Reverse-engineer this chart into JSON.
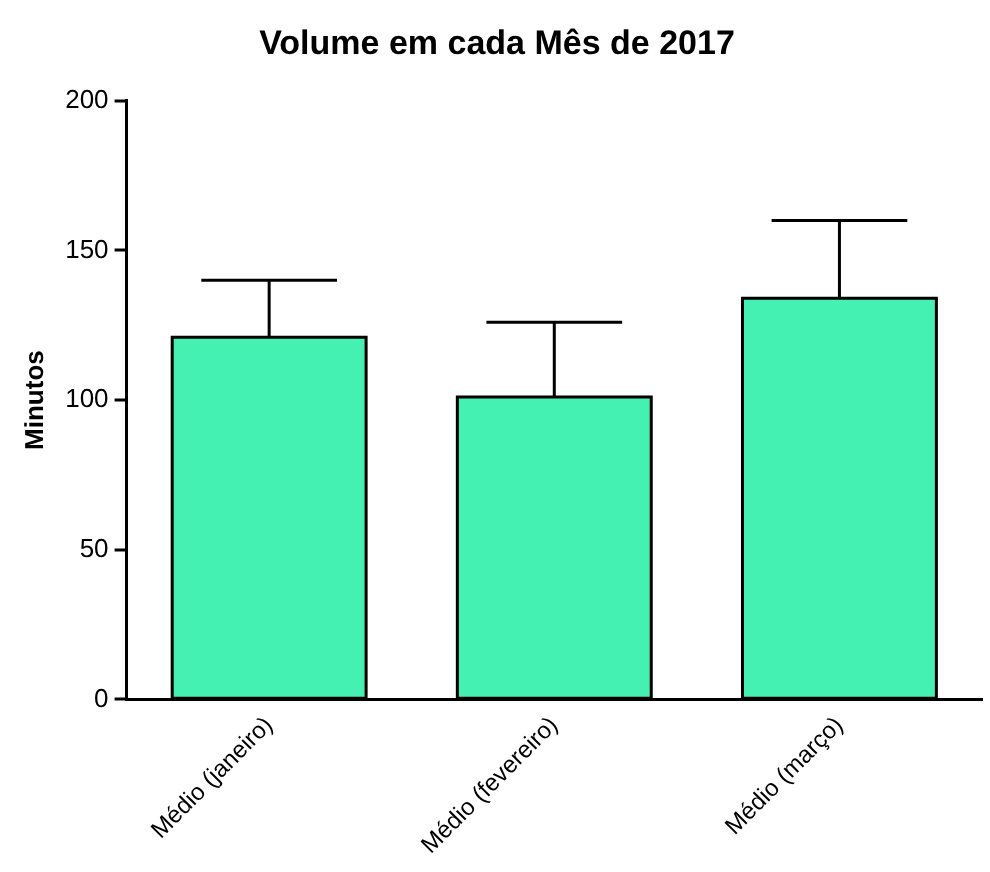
{
  "chart_data": {
    "type": "bar",
    "title": "Volume em cada Mês de 2017",
    "ylabel": "Minutos",
    "categories": [
      "Médio (janeiro)",
      "Médio (fevereiro)",
      "Médio (março)"
    ],
    "values": [
      121,
      101,
      134
    ],
    "errors": [
      [
        121,
        140
      ],
      [
        101,
        126
      ],
      [
        134,
        160
      ]
    ],
    "color": "#44f0b2",
    "ylim": [
      0,
      200
    ],
    "yticks": [
      0,
      50,
      100,
      150,
      200
    ],
    "grid": false,
    "legend": false
  }
}
